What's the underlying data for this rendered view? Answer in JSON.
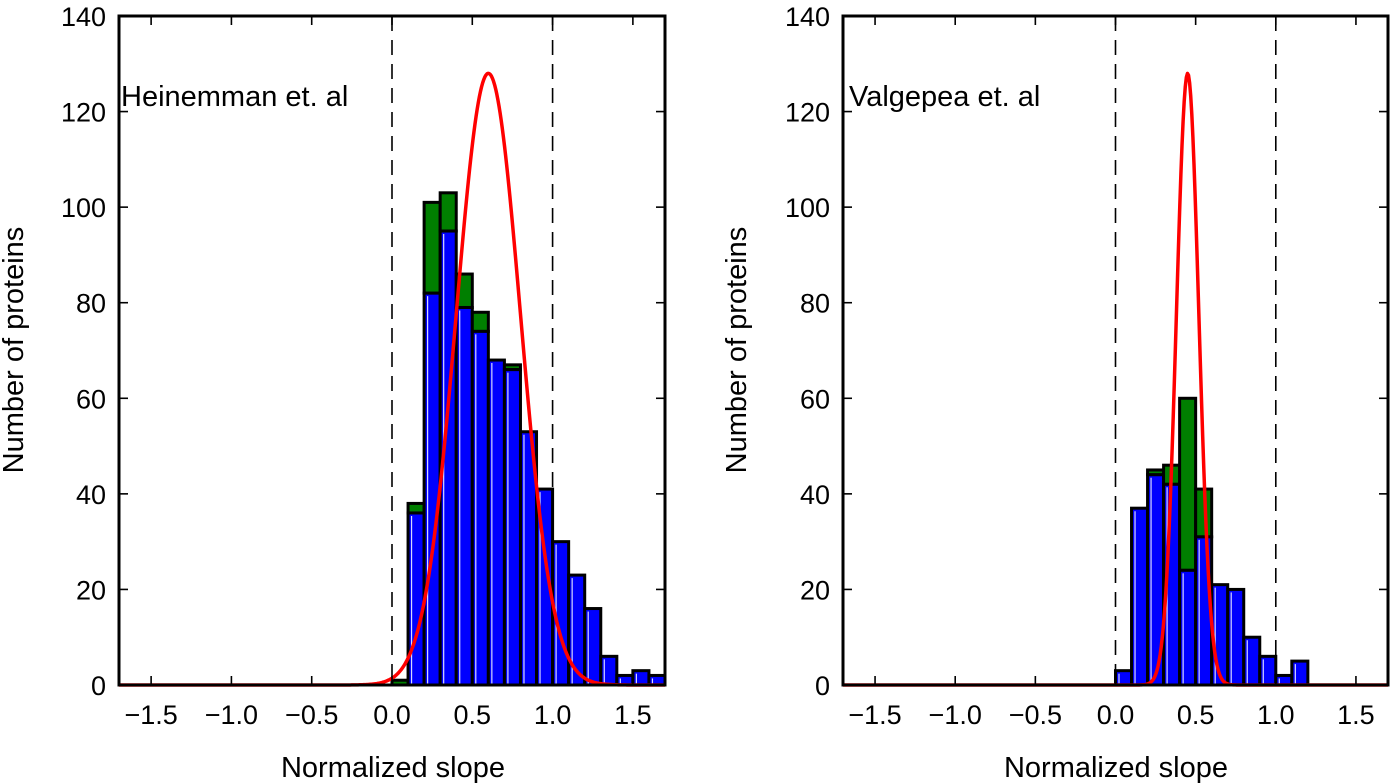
{
  "chart_data": [
    {
      "type": "bar",
      "annotation": "Heinemman et. al",
      "xlabel": "Normalized slope",
      "ylabel": "Number of proteins",
      "xlim": [
        -1.7,
        1.7
      ],
      "ylim": [
        0,
        140
      ],
      "xticks": [
        "−1.5",
        "−1.0",
        "−0.5",
        "0.0",
        "0.5",
        "1.0",
        "1.5"
      ],
      "xtick_values": [
        -1.5,
        -1.0,
        -0.5,
        0.0,
        0.5,
        1.0,
        1.5
      ],
      "yticks": [
        "0",
        "20",
        "40",
        "60",
        "80",
        "100",
        "120",
        "140"
      ],
      "ytick_values": [
        0,
        20,
        40,
        60,
        80,
        100,
        120,
        140
      ],
      "vlines": [
        0.0,
        1.0
      ],
      "bin_width": 0.1,
      "bins": [
        {
          "x": 0.05,
          "total": 1,
          "blue": 0
        },
        {
          "x": 0.15,
          "total": 38,
          "blue": 36
        },
        {
          "x": 0.25,
          "total": 101,
          "blue": 82
        },
        {
          "x": 0.35,
          "total": 103,
          "blue": 95
        },
        {
          "x": 0.45,
          "total": 86,
          "blue": 79
        },
        {
          "x": 0.55,
          "total": 78,
          "blue": 74
        },
        {
          "x": 0.65,
          "total": 68,
          "blue": 68
        },
        {
          "x": 0.75,
          "total": 67,
          "blue": 66
        },
        {
          "x": 0.85,
          "total": 53,
          "blue": 53
        },
        {
          "x": 0.95,
          "total": 41,
          "blue": 41
        },
        {
          "x": 1.05,
          "total": 30,
          "blue": 30
        },
        {
          "x": 1.15,
          "total": 23,
          "blue": 23
        },
        {
          "x": 1.25,
          "total": 16,
          "blue": 16
        },
        {
          "x": 1.35,
          "total": 6,
          "blue": 6
        },
        {
          "x": 1.45,
          "total": 2,
          "blue": 2
        },
        {
          "x": 1.55,
          "total": 3,
          "blue": 3
        },
        {
          "x": 1.65,
          "total": 2,
          "blue": 2
        }
      ],
      "curve": {
        "mu": 0.6,
        "sigma": 0.2,
        "peak": 128
      }
    },
    {
      "type": "bar",
      "annotation": "Valgepea et. al",
      "xlabel": "Normalized slope",
      "ylabel": "Number of proteins",
      "xlim": [
        -1.7,
        1.7
      ],
      "ylim": [
        0,
        140
      ],
      "xticks": [
        "−1.5",
        "−1.0",
        "−0.5",
        "0.0",
        "0.5",
        "1.0",
        "1.5"
      ],
      "xtick_values": [
        -1.5,
        -1.0,
        -0.5,
        0.0,
        0.5,
        1.0,
        1.5
      ],
      "yticks": [
        "0",
        "20",
        "40",
        "60",
        "80",
        "100",
        "120",
        "140"
      ],
      "ytick_values": [
        0,
        20,
        40,
        60,
        80,
        100,
        120,
        140
      ],
      "vlines": [
        0.0,
        1.0
      ],
      "bin_width": 0.1,
      "bins": [
        {
          "x": 0.05,
          "total": 3,
          "blue": 3
        },
        {
          "x": 0.15,
          "total": 37,
          "blue": 37
        },
        {
          "x": 0.25,
          "total": 45,
          "blue": 44
        },
        {
          "x": 0.35,
          "total": 46,
          "blue": 42
        },
        {
          "x": 0.45,
          "total": 60,
          "blue": 24
        },
        {
          "x": 0.55,
          "total": 41,
          "blue": 31
        },
        {
          "x": 0.65,
          "total": 21,
          "blue": 21
        },
        {
          "x": 0.75,
          "total": 20,
          "blue": 20
        },
        {
          "x": 0.85,
          "total": 10,
          "blue": 10
        },
        {
          "x": 0.95,
          "total": 6,
          "blue": 6
        },
        {
          "x": 1.05,
          "total": 2,
          "blue": 2
        },
        {
          "x": 1.15,
          "total": 5,
          "blue": 5
        }
      ],
      "curve": {
        "mu": 0.45,
        "sigma": 0.07,
        "peak": 128
      }
    }
  ],
  "colors": {
    "blue_fill": "#0000ff",
    "green_fill": "#007f00",
    "curve": "#ff0000",
    "edge": "#000000",
    "highlight": "#ffffff"
  }
}
